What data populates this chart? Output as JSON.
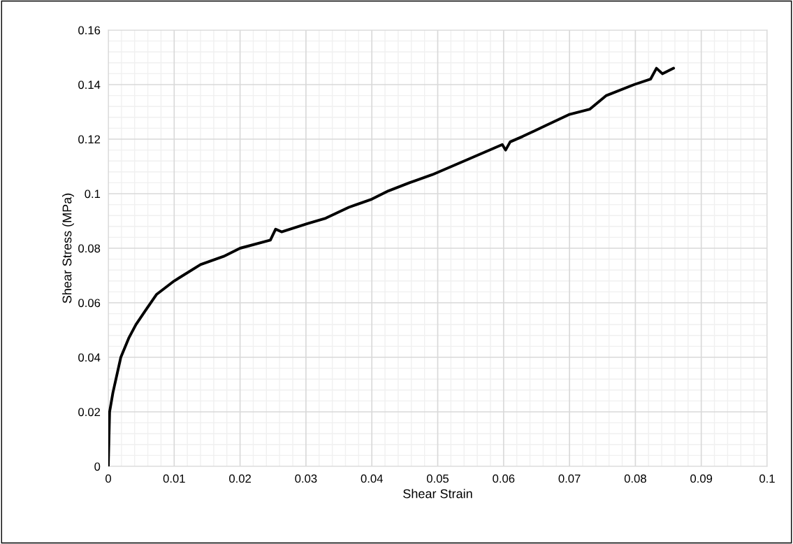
{
  "chart_data": {
    "type": "line",
    "xlabel": "Shear Strain",
    "ylabel": "Shear Stress (MPa)",
    "series": [
      {
        "color": "#000000",
        "x": [
          0,
          0.0001,
          0.0002,
          0.0007,
          0.0019,
          0.0031,
          0.0042,
          0.0056,
          0.0073,
          0.01,
          0.014,
          0.0175,
          0.02,
          0.0246,
          0.0254,
          0.0263,
          0.0302,
          0.033,
          0.0365,
          0.04,
          0.0425,
          0.0457,
          0.0492,
          0.055,
          0.0598,
          0.0603,
          0.061,
          0.0629,
          0.0664,
          0.0699,
          0.0731,
          0.0756,
          0.0798,
          0.0823,
          0.0832,
          0.0841,
          0.0858
        ],
        "values": [
          0,
          0.01,
          0.02,
          0.027,
          0.04,
          0.047,
          0.052,
          0.057,
          0.063,
          0.068,
          0.074,
          0.077,
          0.08,
          0.083,
          0.087,
          0.086,
          0.089,
          0.091,
          0.095,
          0.098,
          0.101,
          0.104,
          0.107,
          0.113,
          0.118,
          0.116,
          0.119,
          0.121,
          0.125,
          0.129,
          0.131,
          0.136,
          0.14,
          0.142,
          0.146,
          0.144,
          0.146
        ]
      }
    ],
    "xlim": [
      0,
      0.1
    ],
    "xticks": [
      0,
      0.01,
      0.02,
      0.03,
      0.04,
      0.05,
      0.06,
      0.07,
      0.08,
      0.09,
      0.1
    ],
    "ylim": [
      0,
      0.16
    ],
    "yticks": [
      0,
      0.02,
      0.04,
      0.06,
      0.08,
      0.1,
      0.12,
      0.14,
      0.16
    ],
    "grid": true,
    "marker": "none",
    "line_style": "solid",
    "legend": false
  }
}
